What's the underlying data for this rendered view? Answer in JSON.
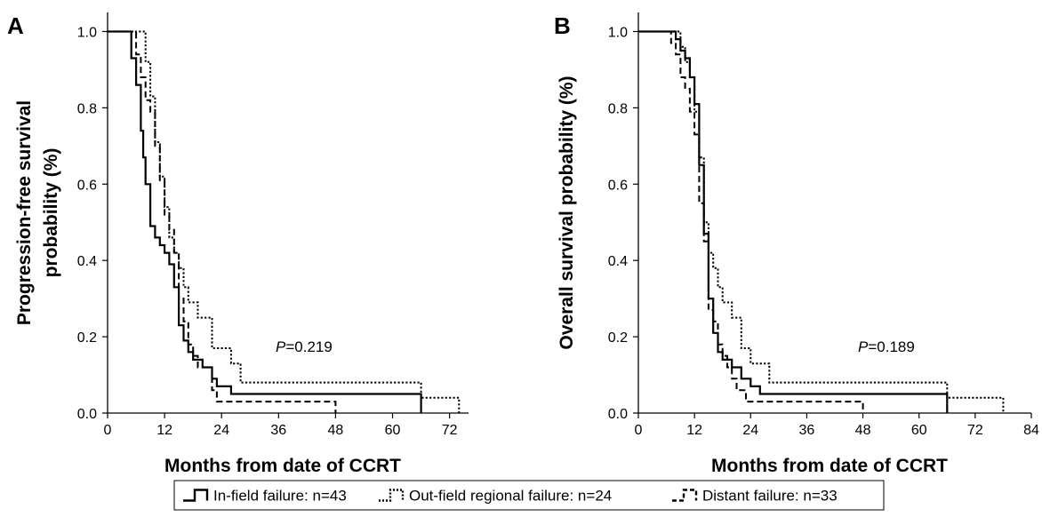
{
  "figure": {
    "legend": [
      {
        "label": "In-field failure: n=43",
        "style": "solid"
      },
      {
        "label": "Out-field regional failure: n=24",
        "style": "dotted"
      },
      {
        "label": "Distant failure: n=33",
        "style": "dashed"
      }
    ]
  },
  "chart_data": [
    {
      "type": "line",
      "panel_label": "A",
      "xlabel": "Months from date of CCRT",
      "ylabel_lines": [
        "Progression-free survival",
        "probability (%)"
      ],
      "xlim": [
        0,
        76
      ],
      "ylim": [
        0,
        1.05
      ],
      "xticks": [
        0,
        12,
        24,
        36,
        48,
        60,
        72
      ],
      "yticks": [
        0.0,
        0.2,
        0.4,
        0.6,
        0.8,
        1.0
      ],
      "grid": false,
      "annotation": {
        "italic": "P",
        "text": "=0.219"
      },
      "series": [
        {
          "name": "In-field failure: n=43",
          "style": "solid",
          "x": [
            0,
            5,
            6,
            7,
            7.5,
            8,
            9,
            10,
            11,
            12,
            13,
            14,
            15,
            16,
            17,
            18,
            20,
            22,
            23,
            26,
            28,
            66
          ],
          "y": [
            1.0,
            0.93,
            0.86,
            0.74,
            0.67,
            0.6,
            0.49,
            0.46,
            0.44,
            0.42,
            0.39,
            0.33,
            0.23,
            0.19,
            0.16,
            0.14,
            0.12,
            0.09,
            0.07,
            0.05,
            0.05,
            0.0
          ]
        },
        {
          "name": "Out-field regional failure: n=24",
          "style": "dotted",
          "x": [
            0,
            8,
            9,
            10,
            11,
            12,
            13,
            14,
            15,
            16,
            17,
            19,
            22,
            26,
            28,
            66,
            74
          ],
          "y": [
            1.0,
            0.92,
            0.83,
            0.71,
            0.62,
            0.54,
            0.46,
            0.42,
            0.38,
            0.33,
            0.29,
            0.25,
            0.17,
            0.13,
            0.08,
            0.04,
            0.0
          ]
        },
        {
          "name": "Distant failure: n=33",
          "style": "dashed",
          "x": [
            0,
            6,
            7,
            8,
            9,
            10,
            11,
            12,
            13,
            14,
            15,
            16,
            17,
            18,
            19,
            22,
            23,
            48
          ],
          "y": [
            1.0,
            0.94,
            0.88,
            0.82,
            0.79,
            0.7,
            0.61,
            0.52,
            0.48,
            0.42,
            0.3,
            0.24,
            0.18,
            0.15,
            0.12,
            0.06,
            0.03,
            0.0
          ]
        }
      ]
    },
    {
      "type": "line",
      "panel_label": "B",
      "xlabel": "Months from date of CCRT",
      "ylabel_lines": [
        "Overall survival probability (%)"
      ],
      "xlim": [
        0,
        84
      ],
      "ylim": [
        0,
        1.05
      ],
      "xticks": [
        0,
        12,
        24,
        36,
        48,
        60,
        72,
        84
      ],
      "yticks": [
        0.0,
        0.2,
        0.4,
        0.6,
        0.8,
        1.0
      ],
      "grid": false,
      "annotation": {
        "italic": "P",
        "text": "=0.189"
      },
      "series": [
        {
          "name": "In-field failure: n=43",
          "style": "solid",
          "x": [
            0,
            8,
            9,
            10,
            11,
            12,
            13,
            14,
            15,
            16,
            17,
            18,
            20,
            22,
            24,
            26,
            28,
            66
          ],
          "y": [
            1.0,
            0.98,
            0.95,
            0.93,
            0.88,
            0.81,
            0.65,
            0.47,
            0.3,
            0.21,
            0.16,
            0.14,
            0.12,
            0.09,
            0.07,
            0.05,
            0.05,
            0.0
          ]
        },
        {
          "name": "Out-field regional failure: n=24",
          "style": "dotted",
          "x": [
            0,
            9,
            10,
            11,
            12,
            13,
            14,
            15,
            16,
            17,
            18,
            20,
            22,
            24,
            26,
            28,
            66,
            78
          ],
          "y": [
            1.0,
            0.96,
            0.92,
            0.88,
            0.79,
            0.67,
            0.5,
            0.42,
            0.38,
            0.33,
            0.29,
            0.25,
            0.17,
            0.13,
            0.13,
            0.08,
            0.04,
            0.0
          ]
        },
        {
          "name": "Distant failure: n=33",
          "style": "dashed",
          "x": [
            0,
            7,
            8,
            9,
            10,
            11,
            12,
            13,
            14,
            15,
            16,
            17,
            18,
            19,
            20,
            21,
            23,
            48
          ],
          "y": [
            1.0,
            0.97,
            0.94,
            0.88,
            0.85,
            0.79,
            0.73,
            0.55,
            0.45,
            0.27,
            0.24,
            0.18,
            0.15,
            0.12,
            0.09,
            0.06,
            0.03,
            0.0
          ]
        }
      ]
    }
  ]
}
